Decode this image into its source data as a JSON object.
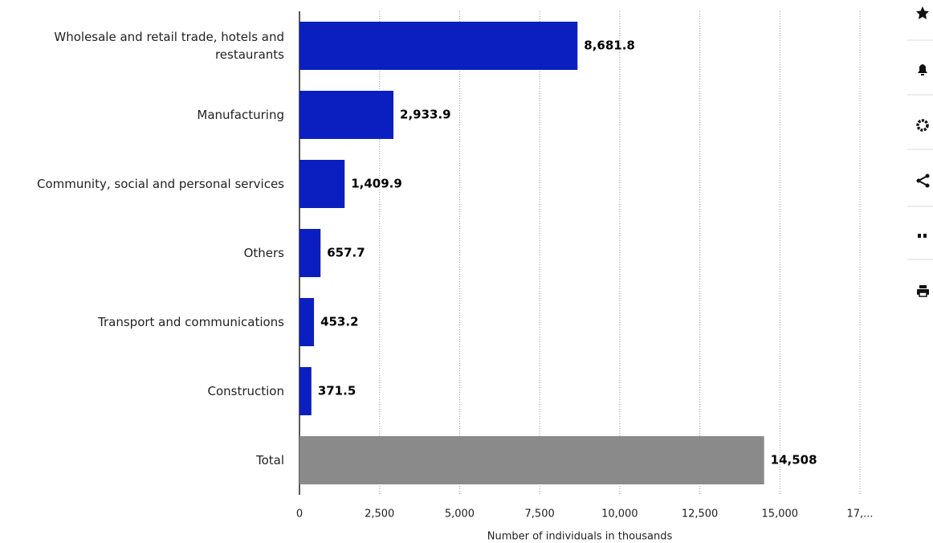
{
  "chart_data": {
    "type": "bar",
    "orientation": "horizontal",
    "categories": [
      "Wholesale and retail trade, hotels and restaurants",
      "Manufacturing",
      "Community, social and personal services",
      "Others",
      "Transport and communications",
      "Construction",
      "Total"
    ],
    "values": [
      8681.8,
      2933.9,
      1409.9,
      657.7,
      453.2,
      371.5,
      14508
    ],
    "value_labels": [
      "8,681.8",
      "2,933.9",
      "1,409.9",
      "657.7",
      "453.2",
      "371.5",
      "14,508"
    ],
    "colors": [
      "#0b1fc0",
      "#0b1fc0",
      "#0b1fc0",
      "#0b1fc0",
      "#0b1fc0",
      "#0b1fc0",
      "#8a8a8a"
    ],
    "xlabel": "Number of individuals in thousands",
    "xlim": [
      0,
      17500
    ],
    "xticks": [
      0,
      {
        "value": 2500,
        "label": "2,500"
      },
      {
        "value": 5000,
        "label": "5,000"
      },
      {
        "value": 7500,
        "label": "7,500"
      },
      {
        "value": 10000,
        "label": "10,000"
      },
      {
        "value": 12500,
        "label": "12,500"
      },
      {
        "value": 15000,
        "label": "15,000"
      },
      {
        "value": 17500,
        "label": "17,..."
      }
    ],
    "grid": true
  }
}
